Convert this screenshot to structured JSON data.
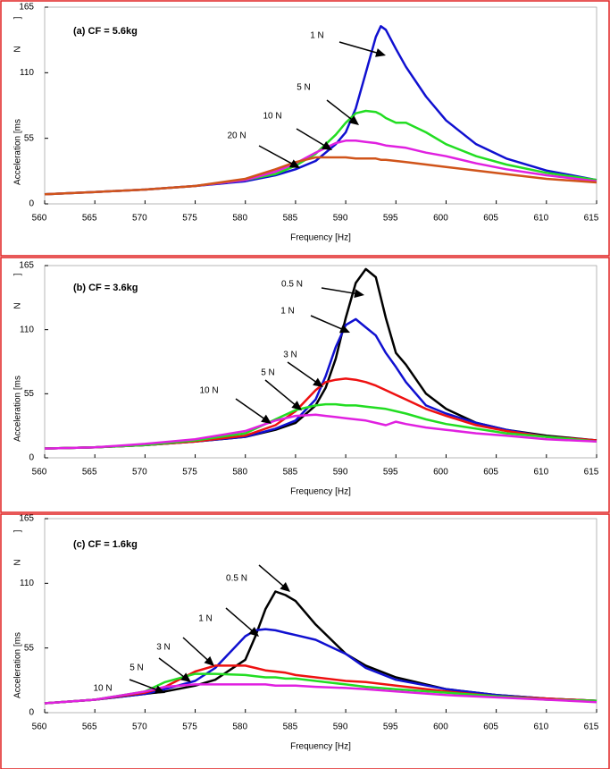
{
  "chart_data": [
    {
      "type": "line",
      "title": "(a) CF = 5.6kg",
      "x_label": "Frequency [Hz]",
      "y_label": "Acceleration [ms",
      "y_label_unit": "N",
      "y_label_end": "]",
      "xlim": [
        560,
        615
      ],
      "xticks": [
        560,
        565,
        570,
        575,
        580,
        585,
        590,
        595,
        600,
        605,
        610,
        615
      ],
      "ylim": [
        0,
        165
      ],
      "yticks": [
        0,
        55,
        110,
        165
      ],
      "x": [
        560,
        565,
        570,
        575,
        580,
        583,
        585,
        587,
        589,
        590,
        591,
        592,
        593,
        593.5,
        594,
        595,
        596,
        598,
        600,
        603,
        606,
        610,
        615
      ],
      "series": [
        {
          "name": "1 N",
          "color": "#1010d0",
          "values": [
            8,
            10,
            12,
            15,
            19,
            24,
            29,
            36,
            50,
            60,
            80,
            110,
            140,
            149,
            146,
            130,
            115,
            90,
            70,
            50,
            38,
            28,
            20
          ]
        },
        {
          "name": "5 N",
          "color": "#22dd22",
          "values": [
            8,
            10,
            12,
            15,
            20,
            25,
            32,
            42,
            58,
            68,
            76,
            78,
            77,
            75,
            72,
            68,
            68,
            60,
            50,
            40,
            33,
            26,
            20
          ]
        },
        {
          "name": "10 N",
          "color": "#e020e0",
          "values": [
            8,
            10,
            12,
            15,
            20,
            27,
            34,
            43,
            51,
            53,
            53,
            52,
            51,
            50,
            49,
            48,
            47,
            43,
            40,
            34,
            29,
            24,
            19
          ]
        },
        {
          "name": "20 N",
          "color": "#d0541a",
          "values": [
            8,
            10,
            12,
            15,
            21,
            29,
            35,
            39,
            39,
            39,
            38,
            38,
            38,
            37,
            37,
            36,
            35,
            33,
            31,
            28,
            25,
            21,
            18
          ]
        }
      ]
    },
    {
      "type": "line",
      "title": "(b) CF = 3.6kg",
      "x_label": "Frequency [Hz]",
      "y_label": "Acceleration [ms",
      "y_label_unit": "N",
      "y_label_end": "]",
      "xlim": [
        560,
        615
      ],
      "xticks": [
        560,
        565,
        570,
        575,
        580,
        585,
        590,
        595,
        600,
        605,
        610,
        615
      ],
      "ylim": [
        0,
        165
      ],
      "yticks": [
        0,
        55,
        110,
        165
      ],
      "x": [
        560,
        565,
        570,
        575,
        580,
        583,
        585,
        587,
        588,
        589,
        590,
        591,
        592,
        593,
        594,
        595,
        596,
        598,
        600,
        603,
        606,
        610,
        615
      ],
      "series": [
        {
          "name": "0.5 N",
          "color": "#000000",
          "values": [
            8,
            9,
            11,
            14,
            18,
            24,
            30,
            45,
            60,
            85,
            120,
            150,
            162,
            155,
            120,
            90,
            80,
            55,
            42,
            30,
            24,
            19,
            15
          ]
        },
        {
          "name": "1 N",
          "color": "#1010d0",
          "values": [
            8,
            9,
            11,
            14,
            18,
            25,
            32,
            50,
            70,
            95,
            114,
            119,
            112,
            105,
            90,
            78,
            65,
            45,
            38,
            30,
            24,
            18,
            15
          ]
        },
        {
          "name": "3 N",
          "color": "#ee1111",
          "values": [
            8,
            9,
            11,
            14,
            19,
            28,
            40,
            58,
            65,
            67,
            68,
            67,
            65,
            62,
            58,
            54,
            50,
            42,
            36,
            28,
            23,
            18,
            15
          ]
        },
        {
          "name": "5 N",
          "color": "#22dd22",
          "values": [
            8,
            9,
            11,
            15,
            21,
            33,
            41,
            45,
            46,
            46,
            45,
            45,
            44,
            43,
            42,
            40,
            38,
            33,
            29,
            25,
            21,
            18,
            14
          ]
        },
        {
          "name": "10 N",
          "color": "#e020e0",
          "values": [
            8,
            9,
            12,
            16,
            23,
            32,
            36,
            37,
            36,
            35,
            34,
            33,
            32,
            30,
            28,
            31,
            29,
            26,
            24,
            21,
            19,
            16,
            14
          ]
        }
      ]
    },
    {
      "type": "line",
      "title": "(c) CF = 1.6kg",
      "x_label": "Frequency [Hz]",
      "y_label": "Acceleration [ms",
      "y_label_unit": "N",
      "y_label_end": "]",
      "xlim": [
        560,
        615
      ],
      "xticks": [
        560,
        565,
        570,
        575,
        580,
        585,
        590,
        595,
        600,
        605,
        610,
        615
      ],
      "ylim": [
        0,
        165
      ],
      "yticks": [
        0,
        55,
        110,
        165
      ],
      "x": [
        560,
        565,
        570,
        572,
        575,
        577,
        580,
        581,
        582,
        583,
        584,
        585,
        587,
        590,
        592,
        595,
        600,
        605,
        610,
        615
      ],
      "series": [
        {
          "name": "0.5 N",
          "color": "#000000",
          "values": [
            8,
            11,
            16,
            18,
            23,
            28,
            45,
            65,
            88,
            103,
            100,
            95,
            75,
            50,
            40,
            30,
            20,
            15,
            12,
            10
          ]
        },
        {
          "name": "1 N",
          "color": "#1010d0",
          "values": [
            8,
            11,
            16,
            20,
            27,
            38,
            65,
            70,
            71,
            70,
            68,
            66,
            62,
            50,
            38,
            28,
            20,
            15,
            12,
            10
          ]
        },
        {
          "name": "3 N",
          "color": "#ee1111",
          "values": [
            8,
            11,
            17,
            22,
            35,
            40,
            40,
            38,
            36,
            35,
            34,
            32,
            30,
            27,
            26,
            23,
            18,
            14,
            12,
            10
          ]
        },
        {
          "name": "5 N",
          "color": "#22dd22",
          "values": [
            8,
            11,
            18,
            26,
            33,
            33,
            32,
            31,
            30,
            30,
            29,
            29,
            27,
            24,
            22,
            20,
            17,
            14,
            11,
            10
          ]
        },
        {
          "name": "10 N",
          "color": "#e020e0",
          "values": [
            8,
            11,
            18,
            22,
            24,
            24,
            24,
            24,
            24,
            23,
            23,
            23,
            22,
            21,
            20,
            18,
            15,
            13,
            11,
            9
          ]
        }
      ]
    }
  ]
}
